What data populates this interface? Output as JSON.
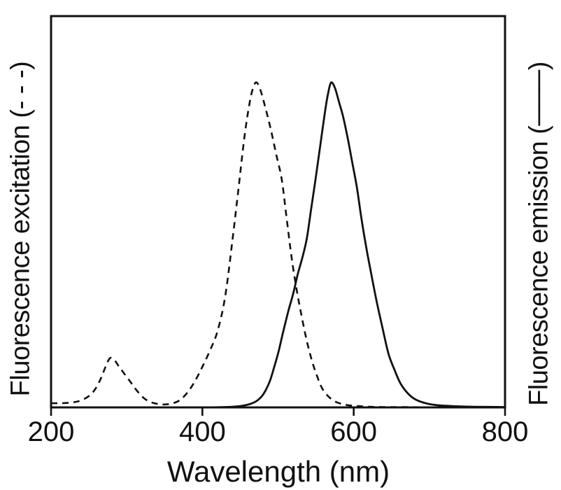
{
  "figure": {
    "background": "#ffffff",
    "ink_color": "#111111"
  },
  "chart_data": {
    "type": "line",
    "title": "",
    "xlabel": "Wavelength (nm)",
    "ylabel_left": "Fluorescence excitation (- - -)",
    "ylabel_right": "Fluorescence emission (───)",
    "xlim": [
      200,
      800
    ],
    "x_ticks": [
      200,
      400,
      600,
      800
    ],
    "ylim": [
      0,
      1.2
    ],
    "y_axis_ticks": "none (relative intensity, unlabeled)",
    "grid": false,
    "legend_position": "encoded in rotated axis labels",
    "series": [
      {
        "id": "excitation",
        "name": "Fluorescence excitation",
        "line_style": "dashed",
        "color": "#111111",
        "peaks_nm": [
          280,
          470
        ],
        "x_nm": [
          200,
          215,
          230,
          240,
          250,
          258,
          266,
          272,
          278,
          284,
          290,
          298,
          306,
          314,
          322,
          330,
          340,
          350,
          360,
          370,
          380,
          390,
          400,
          410,
          420,
          430,
          440,
          448,
          456,
          463,
          468,
          472,
          477,
          483,
          490,
          498,
          505,
          512,
          518,
          524,
          530,
          537,
          544,
          551,
          558,
          566,
          574,
          582,
          592,
          605,
          620,
          640,
          670,
          700,
          750,
          800
        ],
        "y_rel": [
          0.013,
          0.013,
          0.016,
          0.022,
          0.035,
          0.055,
          0.09,
          0.125,
          0.152,
          0.145,
          0.125,
          0.1,
          0.075,
          0.05,
          0.03,
          0.018,
          0.011,
          0.009,
          0.012,
          0.022,
          0.045,
          0.08,
          0.125,
          0.175,
          0.235,
          0.34,
          0.52,
          0.68,
          0.84,
          0.945,
          0.99,
          1.0,
          0.975,
          0.925,
          0.86,
          0.775,
          0.7,
          0.57,
          0.46,
          0.37,
          0.295,
          0.215,
          0.15,
          0.1,
          0.06,
          0.035,
          0.02,
          0.012,
          0.007,
          0.004,
          0.002,
          0.001,
          0.001,
          0.0,
          0.0,
          0.0
        ]
      },
      {
        "id": "emission",
        "name": "Fluorescence emission",
        "line_style": "solid",
        "color": "#111111",
        "peaks_nm": [
          570
        ],
        "x_nm": [
          200,
          300,
          400,
          430,
          445,
          455,
          465,
          473,
          481,
          489,
          495,
          501,
          507,
          514,
          520,
          526,
          532,
          538,
          544,
          550,
          556,
          562,
          566,
          570,
          575,
          580,
          586,
          592,
          598,
          604,
          610,
          616,
          622,
          630,
          638,
          646,
          654,
          662,
          672,
          682,
          695,
          710,
          730,
          760,
          800
        ],
        "y_rel": [
          0.0,
          0.0,
          0.0,
          0.001,
          0.003,
          0.006,
          0.012,
          0.022,
          0.042,
          0.08,
          0.125,
          0.175,
          0.235,
          0.3,
          0.35,
          0.41,
          0.46,
          0.52,
          0.615,
          0.71,
          0.81,
          0.91,
          0.965,
          1.0,
          0.985,
          0.945,
          0.895,
          0.83,
          0.755,
          0.68,
          0.585,
          0.5,
          0.425,
          0.33,
          0.245,
          0.165,
          0.115,
          0.073,
          0.042,
          0.024,
          0.013,
          0.007,
          0.004,
          0.002,
          0.001
        ]
      }
    ]
  }
}
